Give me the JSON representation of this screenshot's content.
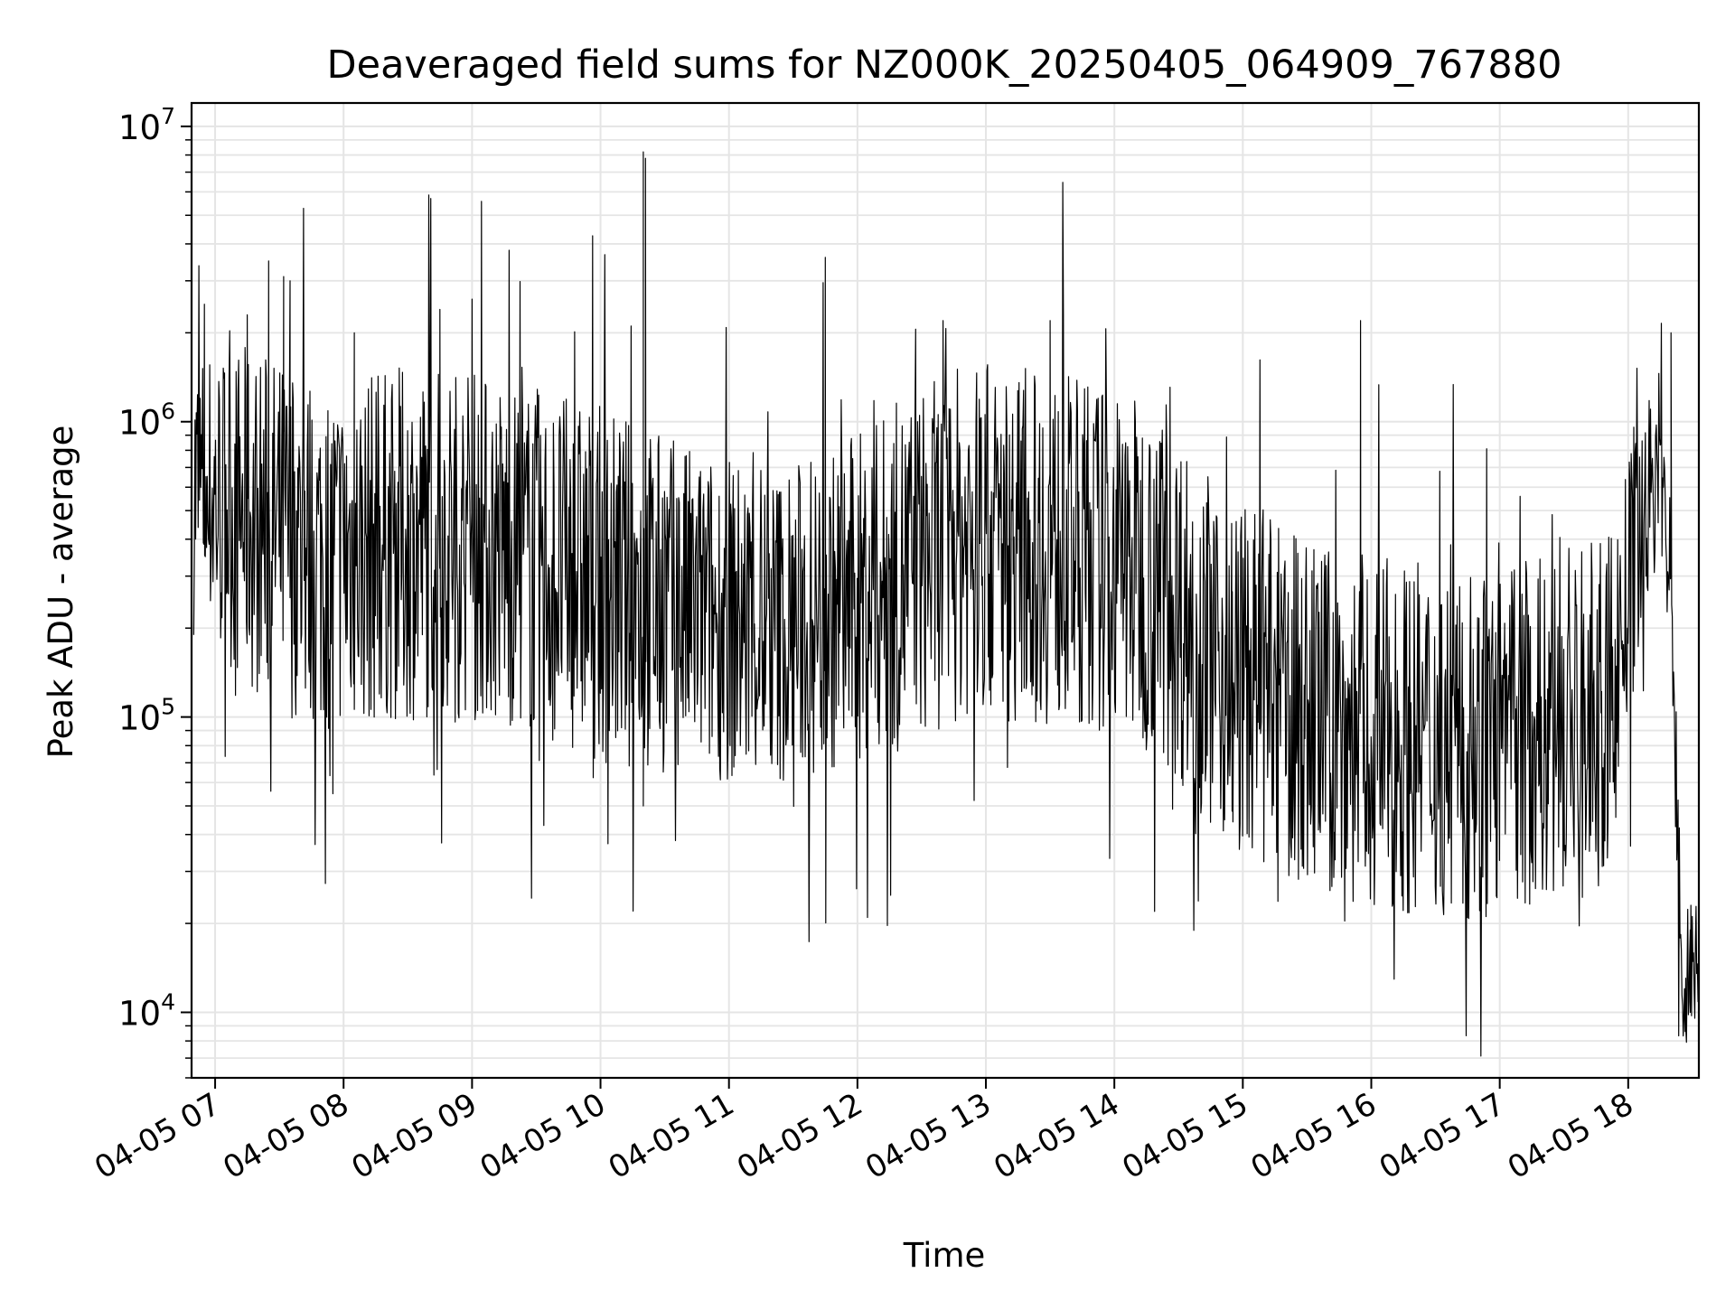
{
  "chart_data": {
    "type": "line",
    "title": "Deaveraged field sums for NZ000K_20250405_064909_767880",
    "xlabel": "Time",
    "ylabel": "Peak ADU - average",
    "yscale": "log",
    "ylim": [
      6000,
      12000000
    ],
    "xlim": [
      "2025-04-05 06:49",
      "2025-04-05 18:33"
    ],
    "grid": true,
    "line_color": "#000000",
    "grid_color": "#e5e5e5",
    "x_ticks": [
      "04-05 07",
      "04-05 08",
      "04-05 09",
      "04-05 10",
      "04-05 11",
      "04-05 12",
      "04-05 13",
      "04-05 14",
      "04-05 15",
      "04-05 16",
      "04-05 17",
      "04-05 18"
    ],
    "y_ticks": [
      {
        "base": "10",
        "exp": "4",
        "value": 10000
      },
      {
        "base": "10",
        "exp": "5",
        "value": 100000
      },
      {
        "base": "10",
        "exp": "6",
        "value": 1000000
      },
      {
        "base": "10",
        "exp": "7",
        "value": 10000000
      }
    ],
    "series": [
      {
        "name": "",
        "x": [
          "2025-04-05 06:50",
          "2025-04-05 07:20",
          "2025-04-05 07:50",
          "2025-04-05 08:20",
          "2025-04-05 08:50",
          "2025-04-05 09:20",
          "2025-04-05 09:50",
          "2025-04-05 10:20",
          "2025-04-05 10:50",
          "2025-04-05 11:20",
          "2025-04-05 11:50",
          "2025-04-05 12:20",
          "2025-04-05 12:50",
          "2025-04-05 13:20",
          "2025-04-05 13:50",
          "2025-04-05 14:20",
          "2025-04-05 14:50",
          "2025-04-05 15:20",
          "2025-04-05 15:50",
          "2025-04-05 16:20",
          "2025-04-05 16:50",
          "2025-04-05 17:20",
          "2025-04-05 17:50",
          "2025-04-05 18:05",
          "2025-04-05 18:15",
          "2025-04-05 18:20",
          "2025-04-05 18:25",
          "2025-04-05 18:33"
        ],
        "center": [
          600000,
          450000,
          350000,
          380000,
          400000,
          350000,
          300000,
          250000,
          220000,
          200000,
          230000,
          300000,
          400000,
          380000,
          350000,
          300000,
          150000,
          110000,
          90000,
          85000,
          80000,
          90000,
          100000,
          400000,
          800000,
          200000,
          15000,
          14000
        ],
        "spread": [
          0.5,
          0.6,
          0.6,
          0.6,
          0.6,
          0.6,
          0.6,
          0.6,
          0.55,
          0.55,
          0.55,
          0.6,
          0.6,
          0.6,
          0.6,
          0.6,
          0.6,
          0.6,
          0.6,
          0.6,
          0.6,
          0.6,
          0.6,
          0.4,
          0.3,
          0.3,
          0.3,
          0.2
        ],
        "spikes": [
          {
            "x": "2025-04-05 06:55",
            "y": 2500000
          },
          {
            "x": "2025-04-05 07:15",
            "y": 2300000
          },
          {
            "x": "2025-04-05 07:25",
            "y": 3500000
          },
          {
            "x": "2025-04-05 07:32",
            "y": 3100000
          },
          {
            "x": "2025-04-05 07:35",
            "y": 3000000
          },
          {
            "x": "2025-04-05 08:05",
            "y": 2000000
          },
          {
            "x": "2025-04-05 08:45",
            "y": 2400000
          },
          {
            "x": "2025-04-05 09:00",
            "y": 2600000
          },
          {
            "x": "2025-04-05 10:20",
            "y": 8200000
          },
          {
            "x": "2025-04-05 10:21",
            "y": 7800000
          },
          {
            "x": "2025-04-05 11:45",
            "y": 3600000
          },
          {
            "x": "2025-04-05 12:40",
            "y": 2200000
          },
          {
            "x": "2025-04-05 13:30",
            "y": 2200000
          },
          {
            "x": "2025-04-05 15:55",
            "y": 2200000
          },
          {
            "x": "2025-04-05 18:20",
            "y": 2000000
          }
        ],
        "dips": [
          {
            "x": "2025-04-05 07:55",
            "y": 55000
          },
          {
            "x": "2025-04-05 10:20",
            "y": 50000
          },
          {
            "x": "2025-04-05 14:55",
            "y": 48000
          },
          {
            "x": "2025-04-05 17:25",
            "y": 40000
          },
          {
            "x": "2025-04-05 18:27",
            "y": 8500
          },
          {
            "x": "2025-04-05 18:29",
            "y": 10000
          }
        ]
      }
    ]
  }
}
